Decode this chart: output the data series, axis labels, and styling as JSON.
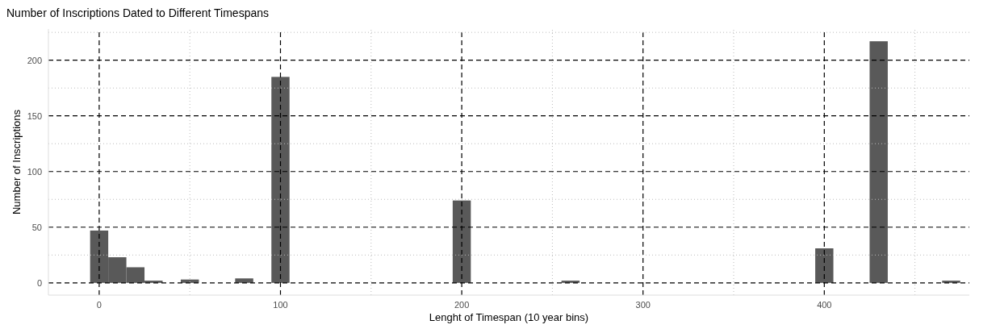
{
  "chart_data": {
    "type": "histogram",
    "title": "Number of Inscriptions Dated to Different Timespans",
    "xlabel": "Lenght of Timespan (10 year bins)",
    "ylabel": "Number of Inscriptions",
    "bins": [
      -5,
      5,
      15,
      25,
      35,
      45,
      55,
      65,
      75,
      85,
      95,
      105,
      115,
      125,
      135,
      145,
      155,
      165,
      175,
      185,
      195,
      205,
      215,
      225,
      235,
      245,
      255,
      265,
      275,
      285,
      295,
      305,
      315,
      325,
      335,
      345,
      355,
      365,
      375,
      385,
      395,
      405,
      415,
      425,
      435,
      445,
      455,
      465,
      475
    ],
    "values": [
      47,
      23,
      14,
      2,
      0,
      3,
      0,
      0,
      4,
      0,
      185,
      0,
      0,
      0,
      0,
      0,
      0,
      0,
      0,
      0,
      74,
      0,
      0,
      0,
      0,
      0,
      2,
      0,
      0,
      0,
      0,
      0,
      0,
      0,
      0,
      0,
      0,
      0,
      0,
      0,
      31,
      0,
      0,
      217,
      0,
      0,
      0,
      2
    ],
    "color": "#595959",
    "xlim": [
      -28,
      480
    ],
    "xticks": [
      0,
      {
        "value": 50,
        "label": null
      },
      100,
      {
        "value": 150,
        "label": null
      },
      200,
      {
        "value": 250,
        "label": null
      },
      300,
      {
        "value": 350,
        "label": null
      },
      400,
      {
        "value": 450,
        "label": null
      }
    ],
    "ylim": [
      -11,
      228
    ],
    "yticks": [
      0,
      {
        "value": 25,
        "label": null
      },
      50,
      {
        "value": 75,
        "label": null
      },
      100,
      {
        "value": 125,
        "label": null
      },
      150,
      {
        "value": 175,
        "label": null
      },
      200,
      {
        "value": 225,
        "label": null
      }
    ],
    "grid": true
  }
}
